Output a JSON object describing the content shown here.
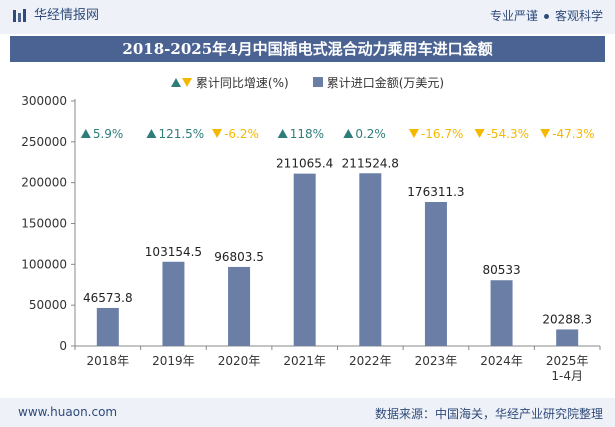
{
  "header": {
    "brand_name": "华经情报网",
    "tagline_part1": "专业严谨",
    "tagline_part2": "客观科学"
  },
  "chart_data": {
    "type": "bar",
    "title": "2018-2025年4月中国插电式混合动力乘用车进口金额",
    "categories": [
      "2018年",
      "2019年",
      "2020年",
      "2021年",
      "2022年",
      "2023年",
      "2024年",
      "2025年\n1-4月"
    ],
    "series": [
      {
        "name": "累计进口金额(万美元)",
        "values": [
          46573.8,
          103154.5,
          96803.5,
          211065.4,
          211524.8,
          176311.3,
          80533,
          20288.3
        ],
        "value_labels": [
          "46573.8",
          "103154.5",
          "96803.5",
          "211065.4",
          "211524.8",
          "176311.3",
          "80533",
          "20288.3"
        ],
        "color": "#6b7fa6"
      },
      {
        "name": "累计同比增速(%)",
        "values": [
          5.9,
          121.5,
          -6.2,
          118,
          0.2,
          -16.7,
          -54.3,
          -47.3
        ],
        "value_labels": [
          "5.9%",
          "121.5%",
          "-6.2%",
          "118%",
          "0.2%",
          "-16.7%",
          "-54.3%",
          "-47.3%"
        ],
        "color_up": "#2e7d7b",
        "color_down": "#f5b800"
      }
    ],
    "y_ticks": [
      "0",
      "50000",
      "100000",
      "150000",
      "200000",
      "250000",
      "300000"
    ],
    "ylim": [
      0,
      300000
    ],
    "grid": false,
    "legend_position": "top-center"
  },
  "footer": {
    "url": "www.huaon.com",
    "source": "数据来源：中国海关，华经产业研究院整理"
  }
}
